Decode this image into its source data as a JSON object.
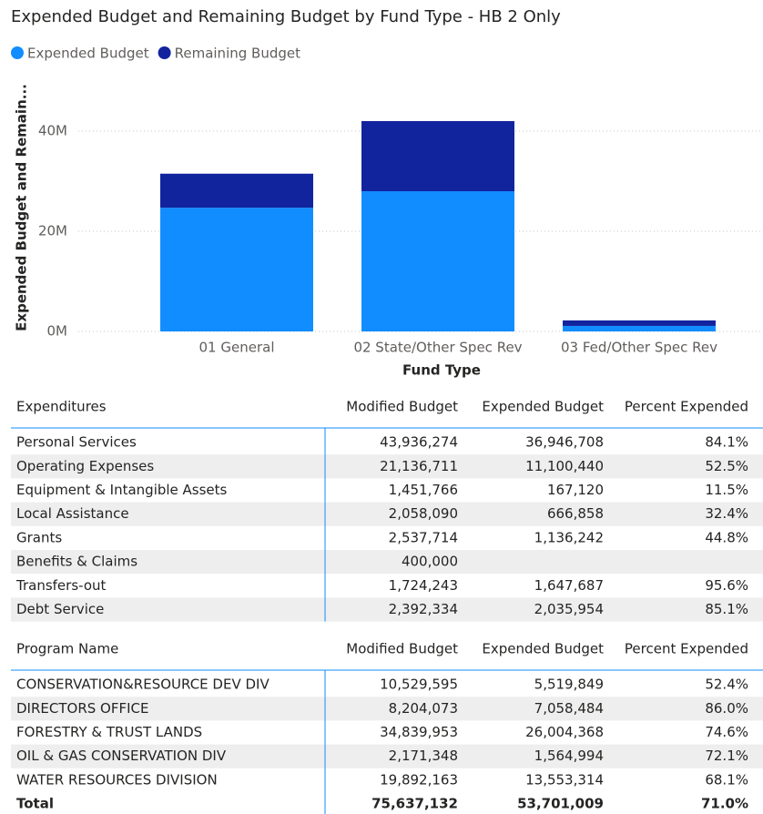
{
  "chart_data": {
    "type": "stacked-bar",
    "title": "Expended Budget and Remaining Budget by Fund Type - HB 2 Only",
    "x_label": "Fund Type",
    "y_label": "Expended Budget and Remain...",
    "categories": [
      "01 General",
      "02 State/Other Spec Rev",
      "03 Fed/Other Spec Rev"
    ],
    "series": [
      {
        "name": "Expended Budget",
        "color": "#118dff",
        "values": [
          24700000,
          28000000,
          1100000
        ]
      },
      {
        "name": "Remaining Budget",
        "color": "#12239e",
        "values": [
          6800000,
          14000000,
          1100000
        ]
      }
    ],
    "ylim": [
      0,
      45000000
    ],
    "yticks": [
      {
        "value": 0,
        "label": "0M"
      },
      {
        "value": 20000000,
        "label": "20M"
      },
      {
        "value": 40000000,
        "label": "40M"
      }
    ],
    "grid": true,
    "legend": "top-left"
  },
  "tables": [
    {
      "columns": [
        "Expenditures",
        "Modified Budget",
        "Expended Budget",
        "Percent Expended"
      ],
      "rows": [
        [
          "Personal Services",
          "43,936,274",
          "36,946,708",
          "84.1%"
        ],
        [
          "Operating Expenses",
          "21,136,711",
          "11,100,440",
          "52.5%"
        ],
        [
          "Equipment & Intangible Assets",
          "1,451,766",
          "167,120",
          "11.5%"
        ],
        [
          "Local Assistance",
          "2,058,090",
          "666,858",
          "32.4%"
        ],
        [
          "Grants",
          "2,537,714",
          "1,136,242",
          "44.8%"
        ],
        [
          "Benefits & Claims",
          "400,000",
          null,
          null
        ],
        [
          "Transfers-out",
          "1,724,243",
          "1,647,687",
          "95.6%"
        ],
        [
          "Debt Service",
          "2,392,334",
          "2,035,954",
          "85.1%"
        ]
      ]
    },
    {
      "columns": [
        "Program Name",
        "Modified Budget",
        "Expended Budget",
        "Percent Expended"
      ],
      "rows": [
        [
          "CONSERVATION&RESOURCE DEV DIV",
          "10,529,595",
          "5,519,849",
          "52.4%"
        ],
        [
          "DIRECTORS OFFICE",
          "8,204,073",
          "7,058,484",
          "86.0%"
        ],
        [
          "FORESTRY & TRUST LANDS",
          "34,839,953",
          "26,004,368",
          "74.6%"
        ],
        [
          "OIL & GAS CONSERVATION DIV",
          "2,171,348",
          "1,564,994",
          "72.1%"
        ],
        [
          "WATER RESOURCES DIVISION",
          "19,892,163",
          "13,553,314",
          "68.1%"
        ]
      ],
      "total": [
        "Total",
        "75,637,132",
        "53,701,009",
        "71.0%"
      ]
    }
  ]
}
